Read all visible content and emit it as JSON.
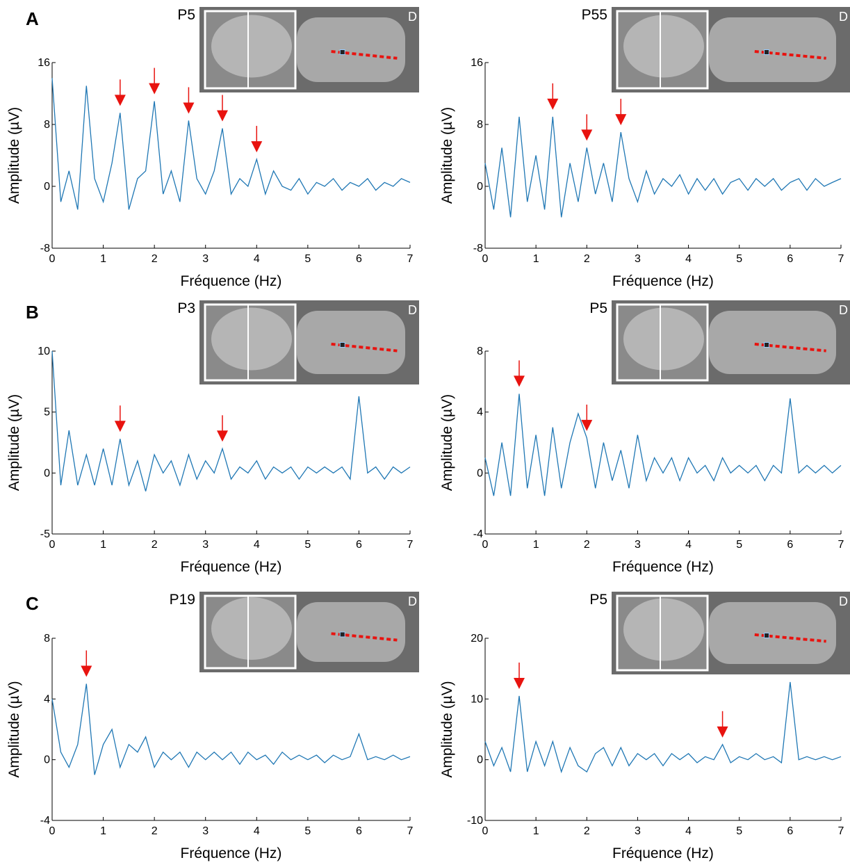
{
  "chart_data": [
    {
      "type": "line",
      "panel_letter": "A",
      "inset_label": "P5",
      "inset_corner_label": "D",
      "xlabel": "Fréquence (Hz)",
      "ylabel": "Amplitude (µV)",
      "color": "#1f77b4",
      "x": [
        0,
        0.17,
        0.33,
        0.5,
        0.67,
        0.83,
        1,
        1.17,
        1.33,
        1.5,
        1.67,
        1.83,
        2,
        2.17,
        2.33,
        2.5,
        2.67,
        2.83,
        3,
        3.17,
        3.33,
        3.5,
        3.67,
        3.83,
        4,
        4.17,
        4.33,
        4.5,
        4.67,
        4.83,
        5,
        5.17,
        5.33,
        5.5,
        5.67,
        5.83,
        6,
        6.17,
        6.33,
        6.5,
        6.67,
        6.83,
        7
      ],
      "values": [
        14,
        -2,
        2,
        -3,
        13,
        1,
        -2,
        3,
        9.5,
        -3,
        1,
        2,
        11,
        -1,
        2,
        -2,
        8.5,
        1,
        -1,
        2,
        7.5,
        -1,
        1,
        0,
        3.5,
        -1,
        2,
        0,
        -0.5,
        1,
        -1,
        0.5,
        0,
        1,
        -0.5,
        0.5,
        0,
        1,
        -0.5,
        0.5,
        0,
        1,
        0.5
      ],
      "arrows": [
        1.33,
        2,
        2.67,
        3.33,
        4
      ],
      "arrow_color": "#e8130f",
      "xlim": [
        0,
        7
      ],
      "xticks": [
        0,
        1,
        2,
        3,
        4,
        5,
        6,
        7
      ],
      "ylim": [
        -8,
        16
      ],
      "yticks": [
        -8,
        0,
        8,
        16
      ]
    },
    {
      "type": "line",
      "inset_label": "P55",
      "inset_corner_label": "D",
      "xlabel": "Fréquence (Hz)",
      "ylabel": "Amplitude (µV)",
      "color": "#1f77b4",
      "x": [
        0,
        0.17,
        0.33,
        0.5,
        0.67,
        0.83,
        1,
        1.17,
        1.33,
        1.5,
        1.67,
        1.83,
        2,
        2.17,
        2.33,
        2.5,
        2.67,
        2.83,
        3,
        3.17,
        3.33,
        3.5,
        3.67,
        3.83,
        4,
        4.17,
        4.33,
        4.5,
        4.67,
        4.83,
        5,
        5.17,
        5.33,
        5.5,
        5.67,
        5.83,
        6,
        6.17,
        6.33,
        6.5,
        6.67,
        6.83,
        7
      ],
      "values": [
        3,
        -3,
        5,
        -4,
        9,
        -2,
        4,
        -3,
        9,
        -4,
        3,
        -2,
        5,
        -1,
        3,
        -2,
        7,
        1,
        -2,
        2,
        -1,
        1,
        0,
        1.5,
        -1,
        1,
        -0.5,
        1,
        -1,
        0.5,
        1,
        -0.5,
        1,
        0,
        1,
        -0.5,
        0.5,
        1,
        -0.5,
        1,
        0,
        0.5,
        1
      ],
      "arrows": [
        1.33,
        2,
        2.67
      ],
      "arrow_color": "#e8130f",
      "xlim": [
        0,
        7
      ],
      "xticks": [
        0,
        1,
        2,
        3,
        4,
        5,
        6,
        7
      ],
      "ylim": [
        -8,
        16
      ],
      "yticks": [
        -8,
        0,
        8,
        16
      ]
    },
    {
      "type": "line",
      "panel_letter": "B",
      "inset_label": "P3",
      "inset_corner_label": "D",
      "xlabel": "Fréquence (Hz)",
      "ylabel": "Amplitude (µV)",
      "color": "#1f77b4",
      "x": [
        0,
        0.17,
        0.33,
        0.5,
        0.67,
        0.83,
        1,
        1.17,
        1.33,
        1.5,
        1.67,
        1.83,
        2,
        2.17,
        2.33,
        2.5,
        2.67,
        2.83,
        3,
        3.17,
        3.33,
        3.5,
        3.67,
        3.83,
        4,
        4.17,
        4.33,
        4.5,
        4.67,
        4.83,
        5,
        5.17,
        5.33,
        5.5,
        5.67,
        5.83,
        6,
        6.17,
        6.33,
        6.5,
        6.67,
        6.83,
        7
      ],
      "values": [
        10,
        -1,
        3.5,
        -1,
        1.5,
        -1,
        2,
        -1,
        2.8,
        -1,
        1,
        -1.5,
        1.5,
        0,
        1,
        -1,
        1.5,
        -0.5,
        1,
        0,
        2,
        -0.5,
        0.5,
        0,
        1,
        -0.5,
        0.5,
        0,
        0.5,
        -0.5,
        0.5,
        0,
        0.5,
        0,
        0.5,
        -0.5,
        6.3,
        0,
        0.5,
        -0.5,
        0.5,
        0,
        0.5
      ],
      "arrows": [
        1.33,
        3.33
      ],
      "arrow_color": "#e8130f",
      "xlim": [
        0,
        7
      ],
      "xticks": [
        0,
        1,
        2,
        3,
        4,
        5,
        6,
        7
      ],
      "ylim": [
        -5,
        10
      ],
      "yticks": [
        -5,
        0,
        5,
        10
      ]
    },
    {
      "type": "line",
      "inset_label": "P5",
      "inset_corner_label": "D",
      "xlabel": "Fréquence (Hz)",
      "ylabel": "Amplitude (µV)",
      "color": "#1f77b4",
      "x": [
        0,
        0.17,
        0.33,
        0.5,
        0.67,
        0.83,
        1,
        1.17,
        1.33,
        1.5,
        1.67,
        1.83,
        2,
        2.17,
        2.33,
        2.5,
        2.67,
        2.83,
        3,
        3.17,
        3.33,
        3.5,
        3.67,
        3.83,
        4,
        4.17,
        4.33,
        4.5,
        4.67,
        4.83,
        5,
        5.17,
        5.33,
        5.5,
        5.67,
        5.83,
        6,
        6.17,
        6.33,
        6.5,
        6.67,
        6.83,
        7
      ],
      "values": [
        1,
        -1.5,
        2,
        -1.5,
        5.2,
        -1,
        2.5,
        -1.5,
        3,
        -1,
        2,
        3.9,
        2.3,
        -1,
        2,
        -0.5,
        1.5,
        -1,
        2.5,
        -0.5,
        1,
        0,
        1,
        -0.5,
        1,
        0,
        0.5,
        -0.5,
        1,
        0,
        0.5,
        0,
        0.5,
        -0.5,
        0.5,
        0,
        4.9,
        0,
        0.5,
        0,
        0.5,
        0,
        0.5
      ],
      "arrows": [
        0.67,
        2
      ],
      "arrow_color": "#e8130f",
      "xlim": [
        0,
        7
      ],
      "xticks": [
        0,
        1,
        2,
        3,
        4,
        5,
        6,
        7
      ],
      "ylim": [
        -4,
        8
      ],
      "yticks": [
        -4,
        0,
        4,
        8
      ]
    },
    {
      "type": "line",
      "panel_letter": "C",
      "inset_label": "P19",
      "inset_corner_label": "D",
      "xlabel": "Fréquence (Hz)",
      "ylabel": "Amplitude (µV)",
      "color": "#1f77b4",
      "x": [
        0,
        0.17,
        0.33,
        0.5,
        0.67,
        0.83,
        1,
        1.17,
        1.33,
        1.5,
        1.67,
        1.83,
        2,
        2.17,
        2.33,
        2.5,
        2.67,
        2.83,
        3,
        3.17,
        3.33,
        3.5,
        3.67,
        3.83,
        4,
        4.17,
        4.33,
        4.5,
        4.67,
        4.83,
        5,
        5.17,
        5.33,
        5.5,
        5.67,
        5.83,
        6,
        6.17,
        6.33,
        6.5,
        6.67,
        6.83,
        7
      ],
      "values": [
        4,
        0.5,
        -0.5,
        1,
        5,
        -1,
        1,
        2,
        -0.5,
        1,
        0.5,
        1.5,
        -0.5,
        0.5,
        0,
        0.5,
        -0.5,
        0.5,
        0,
        0.5,
        0,
        0.5,
        -0.3,
        0.5,
        0,
        0.3,
        -0.3,
        0.5,
        0,
        0.3,
        0,
        0.3,
        -0.2,
        0.3,
        0,
        0.2,
        1.7,
        0,
        0.2,
        0,
        0.3,
        0,
        0.2
      ],
      "arrows": [
        0.67
      ],
      "arrow_color": "#e8130f",
      "xlim": [
        0,
        7
      ],
      "xticks": [
        0,
        1,
        2,
        3,
        4,
        5,
        6,
        7
      ],
      "ylim": [
        -4,
        8
      ],
      "yticks": [
        -4,
        0,
        4,
        8
      ]
    },
    {
      "type": "line",
      "inset_label": "P5",
      "inset_corner_label": "D",
      "xlabel": "Fréquence (Hz)",
      "ylabel": "Amplitude (µV)",
      "color": "#1f77b4",
      "x": [
        0,
        0.17,
        0.33,
        0.5,
        0.67,
        0.83,
        1,
        1.17,
        1.33,
        1.5,
        1.67,
        1.83,
        2,
        2.17,
        2.33,
        2.5,
        2.67,
        2.83,
        3,
        3.17,
        3.33,
        3.5,
        3.67,
        3.83,
        4,
        4.17,
        4.33,
        4.5,
        4.67,
        4.83,
        5,
        5.17,
        5.33,
        5.5,
        5.67,
        5.83,
        6,
        6.17,
        6.33,
        6.5,
        6.67,
        6.83,
        7
      ],
      "values": [
        3,
        -1,
        2,
        -2,
        10.5,
        -2,
        3,
        -1,
        3,
        -2,
        2,
        -1,
        -2,
        1,
        2,
        -1,
        2,
        -1,
        1,
        0,
        1,
        -1,
        1,
        0,
        1,
        -0.5,
        0.5,
        0,
        2.5,
        -0.5,
        0.5,
        0,
        1,
        0,
        0.5,
        -0.5,
        12.8,
        0,
        0.5,
        0,
        0.5,
        0,
        0.5
      ],
      "arrows": [
        0.67,
        4.67
      ],
      "arrow_color": "#e8130f",
      "xlim": [
        0,
        7
      ],
      "xticks": [
        0,
        1,
        2,
        3,
        4,
        5,
        6,
        7
      ],
      "ylim": [
        -10,
        20
      ],
      "yticks": [
        -10,
        0,
        10,
        20
      ]
    }
  ]
}
